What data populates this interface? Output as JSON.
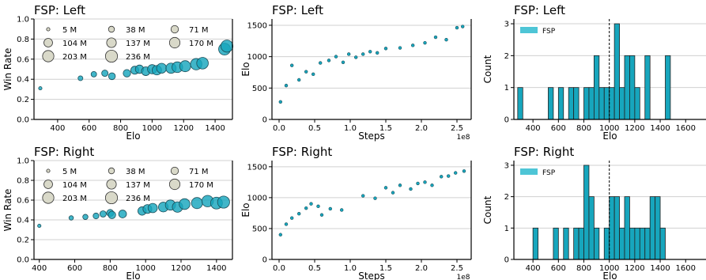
{
  "chart_data": [
    {
      "type": "scatter",
      "title": "FSP: Left",
      "xlabel": "Elo",
      "ylabel": "Win Rate",
      "xlim": [
        250,
        1510
      ],
      "ylim": [
        0,
        1.0
      ],
      "xticks": [
        400,
        600,
        800,
        1000,
        1200,
        1400
      ],
      "yticks": [
        0.0,
        0.2,
        0.4,
        0.6,
        0.8,
        1.0
      ],
      "grid": "horizontal",
      "legend_title": "",
      "legend": [
        {
          "label": "5 M",
          "steps": 5
        },
        {
          "label": "38 M",
          "steps": 38
        },
        {
          "label": "71 M",
          "steps": 71
        },
        {
          "label": "104 M",
          "steps": 104
        },
        {
          "label": "137 M",
          "steps": 137
        },
        {
          "label": "170 M",
          "steps": 170
        },
        {
          "label": "203 M",
          "steps": 203
        },
        {
          "label": "236 M",
          "steps": 236
        }
      ],
      "points": [
        {
          "elo": 290,
          "win": 0.31,
          "steps": 5
        },
        {
          "elo": 545,
          "win": 0.41,
          "steps": 20
        },
        {
          "elo": 630,
          "win": 0.45,
          "steps": 30
        },
        {
          "elo": 700,
          "win": 0.46,
          "steps": 45
        },
        {
          "elo": 745,
          "win": 0.43,
          "steps": 55
        },
        {
          "elo": 840,
          "win": 0.46,
          "steps": 70
        },
        {
          "elo": 890,
          "win": 0.49,
          "steps": 85
        },
        {
          "elo": 920,
          "win": 0.5,
          "steps": 95
        },
        {
          "elo": 960,
          "win": 0.48,
          "steps": 105
        },
        {
          "elo": 1000,
          "win": 0.5,
          "steps": 120
        },
        {
          "elo": 1030,
          "win": 0.49,
          "steps": 130
        },
        {
          "elo": 1060,
          "win": 0.51,
          "steps": 145
        },
        {
          "elo": 1120,
          "win": 0.51,
          "steps": 160
        },
        {
          "elo": 1160,
          "win": 0.52,
          "steps": 175
        },
        {
          "elo": 1210,
          "win": 0.53,
          "steps": 190
        },
        {
          "elo": 1280,
          "win": 0.55,
          "steps": 205
        },
        {
          "elo": 1320,
          "win": 0.56,
          "steps": 215
        },
        {
          "elo": 1460,
          "win": 0.7,
          "steps": 225
        },
        {
          "elo": 1475,
          "win": 0.73,
          "steps": 236
        }
      ]
    },
    {
      "type": "scatter",
      "title": "FSP: Left",
      "xlabel": "Steps",
      "ylabel": "Elo",
      "x_scale_label": "1e8",
      "xlim": [
        -0.1,
        2.7
      ],
      "ylim": [
        0,
        1600
      ],
      "xticks": [
        0.0,
        0.5,
        1.0,
        1.5,
        2.0,
        2.5
      ],
      "yticks": [
        0,
        500,
        1000,
        1500
      ],
      "grid": "horizontal",
      "points": [
        {
          "x": 0.02,
          "y": 280
        },
        {
          "x": 0.1,
          "y": 540
        },
        {
          "x": 0.18,
          "y": 860
        },
        {
          "x": 0.28,
          "y": 630
        },
        {
          "x": 0.38,
          "y": 760
        },
        {
          "x": 0.48,
          "y": 720
        },
        {
          "x": 0.58,
          "y": 900
        },
        {
          "x": 0.7,
          "y": 940
        },
        {
          "x": 0.8,
          "y": 1000
        },
        {
          "x": 0.9,
          "y": 910
        },
        {
          "x": 0.98,
          "y": 1040
        },
        {
          "x": 1.08,
          "y": 990
        },
        {
          "x": 1.18,
          "y": 1040
        },
        {
          "x": 1.28,
          "y": 1080
        },
        {
          "x": 1.38,
          "y": 1060
        },
        {
          "x": 1.5,
          "y": 1130
        },
        {
          "x": 1.7,
          "y": 1140
        },
        {
          "x": 1.88,
          "y": 1180
        },
        {
          "x": 2.05,
          "y": 1220
        },
        {
          "x": 2.2,
          "y": 1310
        },
        {
          "x": 2.35,
          "y": 1270
        },
        {
          "x": 2.5,
          "y": 1460
        },
        {
          "x": 2.58,
          "y": 1480
        }
      ]
    },
    {
      "type": "bar",
      "title": "FSP: Left",
      "xlabel": "Elo",
      "ylabel": "Count",
      "xlim": [
        250,
        1760
      ],
      "ylim": [
        0,
        3.15
      ],
      "xticks": [
        400,
        600,
        800,
        1000,
        1200,
        1400,
        1600
      ],
      "yticks": [
        0,
        1,
        2,
        3
      ],
      "grid": "horizontal",
      "legend": "FSP",
      "reference_line_x": 1000,
      "bin_width": 40,
      "bins": [
        {
          "left": 280,
          "count": 1
        },
        {
          "left": 520,
          "count": 1
        },
        {
          "left": 600,
          "count": 1
        },
        {
          "left": 680,
          "count": 1
        },
        {
          "left": 720,
          "count": 1
        },
        {
          "left": 800,
          "count": 1
        },
        {
          "left": 840,
          "count": 1
        },
        {
          "left": 880,
          "count": 2
        },
        {
          "left": 920,
          "count": 1
        },
        {
          "left": 960,
          "count": 1
        },
        {
          "left": 1000,
          "count": 1
        },
        {
          "left": 1040,
          "count": 3
        },
        {
          "left": 1080,
          "count": 1
        },
        {
          "left": 1120,
          "count": 2
        },
        {
          "left": 1160,
          "count": 2
        },
        {
          "left": 1200,
          "count": 1
        },
        {
          "left": 1280,
          "count": 2
        },
        {
          "left": 1440,
          "count": 2
        }
      ]
    },
    {
      "type": "scatter",
      "title": "FSP: Right",
      "xlabel": "Elo",
      "ylabel": "Win Rate",
      "xlim": [
        370,
        1490
      ],
      "ylim": [
        0,
        1.0
      ],
      "xticks": [
        400,
        600,
        800,
        1000,
        1200,
        1400
      ],
      "yticks": [
        0.0,
        0.2,
        0.4,
        0.6,
        0.8,
        1.0
      ],
      "grid": "horizontal",
      "legend_title": "",
      "legend": [
        {
          "label": "5 M",
          "steps": 5
        },
        {
          "label": "38 M",
          "steps": 38
        },
        {
          "label": "71 M",
          "steps": 71
        },
        {
          "label": "104 M",
          "steps": 104
        },
        {
          "label": "137 M",
          "steps": 137
        },
        {
          "label": "170 M",
          "steps": 170
        },
        {
          "label": "203 M",
          "steps": 203
        },
        {
          "label": "236 M",
          "steps": 236
        }
      ],
      "points": [
        {
          "elo": 400,
          "win": 0.34,
          "steps": 5
        },
        {
          "elo": 580,
          "win": 0.42,
          "steps": 15
        },
        {
          "elo": 660,
          "win": 0.43,
          "steps": 25
        },
        {
          "elo": 720,
          "win": 0.44,
          "steps": 35
        },
        {
          "elo": 760,
          "win": 0.46,
          "steps": 45
        },
        {
          "elo": 800,
          "win": 0.47,
          "steps": 60
        },
        {
          "elo": 810,
          "win": 0.45,
          "steps": 70
        },
        {
          "elo": 870,
          "win": 0.46,
          "steps": 80
        },
        {
          "elo": 980,
          "win": 0.49,
          "steps": 95
        },
        {
          "elo": 1010,
          "win": 0.51,
          "steps": 110
        },
        {
          "elo": 1040,
          "win": 0.52,
          "steps": 125
        },
        {
          "elo": 1100,
          "win": 0.53,
          "steps": 140
        },
        {
          "elo": 1140,
          "win": 0.55,
          "steps": 155
        },
        {
          "elo": 1180,
          "win": 0.53,
          "steps": 165
        },
        {
          "elo": 1220,
          "win": 0.56,
          "steps": 180
        },
        {
          "elo": 1290,
          "win": 0.57,
          "steps": 195
        },
        {
          "elo": 1350,
          "win": 0.59,
          "steps": 210
        },
        {
          "elo": 1400,
          "win": 0.57,
          "steps": 225
        },
        {
          "elo": 1440,
          "win": 0.58,
          "steps": 236
        }
      ]
    },
    {
      "type": "scatter",
      "title": "FSP: Right",
      "xlabel": "Steps",
      "ylabel": "Elo",
      "x_scale_label": "1e8",
      "xlim": [
        -0.1,
        2.7
      ],
      "ylim": [
        0,
        1600
      ],
      "xticks": [
        0.0,
        0.5,
        1.0,
        1.5,
        2.0,
        2.5
      ],
      "yticks": [
        0,
        500,
        1000,
        1500
      ],
      "grid": "horizontal",
      "points": [
        {
          "x": 0.02,
          "y": 400
        },
        {
          "x": 0.1,
          "y": 570
        },
        {
          "x": 0.18,
          "y": 670
        },
        {
          "x": 0.28,
          "y": 740
        },
        {
          "x": 0.38,
          "y": 830
        },
        {
          "x": 0.45,
          "y": 900
        },
        {
          "x": 0.55,
          "y": 860
        },
        {
          "x": 0.6,
          "y": 720
        },
        {
          "x": 0.72,
          "y": 820
        },
        {
          "x": 0.88,
          "y": 800
        },
        {
          "x": 1.18,
          "y": 1030
        },
        {
          "x": 1.35,
          "y": 990
        },
        {
          "x": 1.5,
          "y": 1160
        },
        {
          "x": 1.6,
          "y": 1080
        },
        {
          "x": 1.7,
          "y": 1200
        },
        {
          "x": 1.85,
          "y": 1140
        },
        {
          "x": 1.95,
          "y": 1230
        },
        {
          "x": 2.05,
          "y": 1250
        },
        {
          "x": 2.15,
          "y": 1200
        },
        {
          "x": 2.28,
          "y": 1340
        },
        {
          "x": 2.38,
          "y": 1350
        },
        {
          "x": 2.48,
          "y": 1400
        },
        {
          "x": 2.6,
          "y": 1430
        }
      ]
    },
    {
      "type": "bar",
      "title": "FSP: Right",
      "xlabel": "Elo",
      "ylabel": "Count",
      "xlim": [
        250,
        1760
      ],
      "ylim": [
        0,
        3.15
      ],
      "xticks": [
        400,
        600,
        800,
        1000,
        1200,
        1400,
        1600
      ],
      "yticks": [
        0,
        1,
        2,
        3
      ],
      "grid": "horizontal",
      "legend": "FSP",
      "reference_line_x": 1000,
      "bin_width": 40,
      "bins": [
        {
          "left": 400,
          "count": 1
        },
        {
          "left": 560,
          "count": 1
        },
        {
          "left": 640,
          "count": 1
        },
        {
          "left": 720,
          "count": 1
        },
        {
          "left": 760,
          "count": 1
        },
        {
          "left": 800,
          "count": 3
        },
        {
          "left": 840,
          "count": 2
        },
        {
          "left": 880,
          "count": 1
        },
        {
          "left": 960,
          "count": 1
        },
        {
          "left": 1000,
          "count": 2
        },
        {
          "left": 1040,
          "count": 2
        },
        {
          "left": 1080,
          "count": 1
        },
        {
          "left": 1120,
          "count": 2
        },
        {
          "left": 1160,
          "count": 1
        },
        {
          "left": 1200,
          "count": 1
        },
        {
          "left": 1240,
          "count": 1
        },
        {
          "left": 1280,
          "count": 1
        },
        {
          "left": 1320,
          "count": 2
        },
        {
          "left": 1360,
          "count": 2
        },
        {
          "left": 1400,
          "count": 1
        }
      ]
    }
  ],
  "colors": {
    "teal": "#17a6bd",
    "teal_light": "#4ec5d6",
    "legend_fill": "#d9d9c9",
    "grid": "#d0d0d0",
    "edge": "#222222"
  }
}
